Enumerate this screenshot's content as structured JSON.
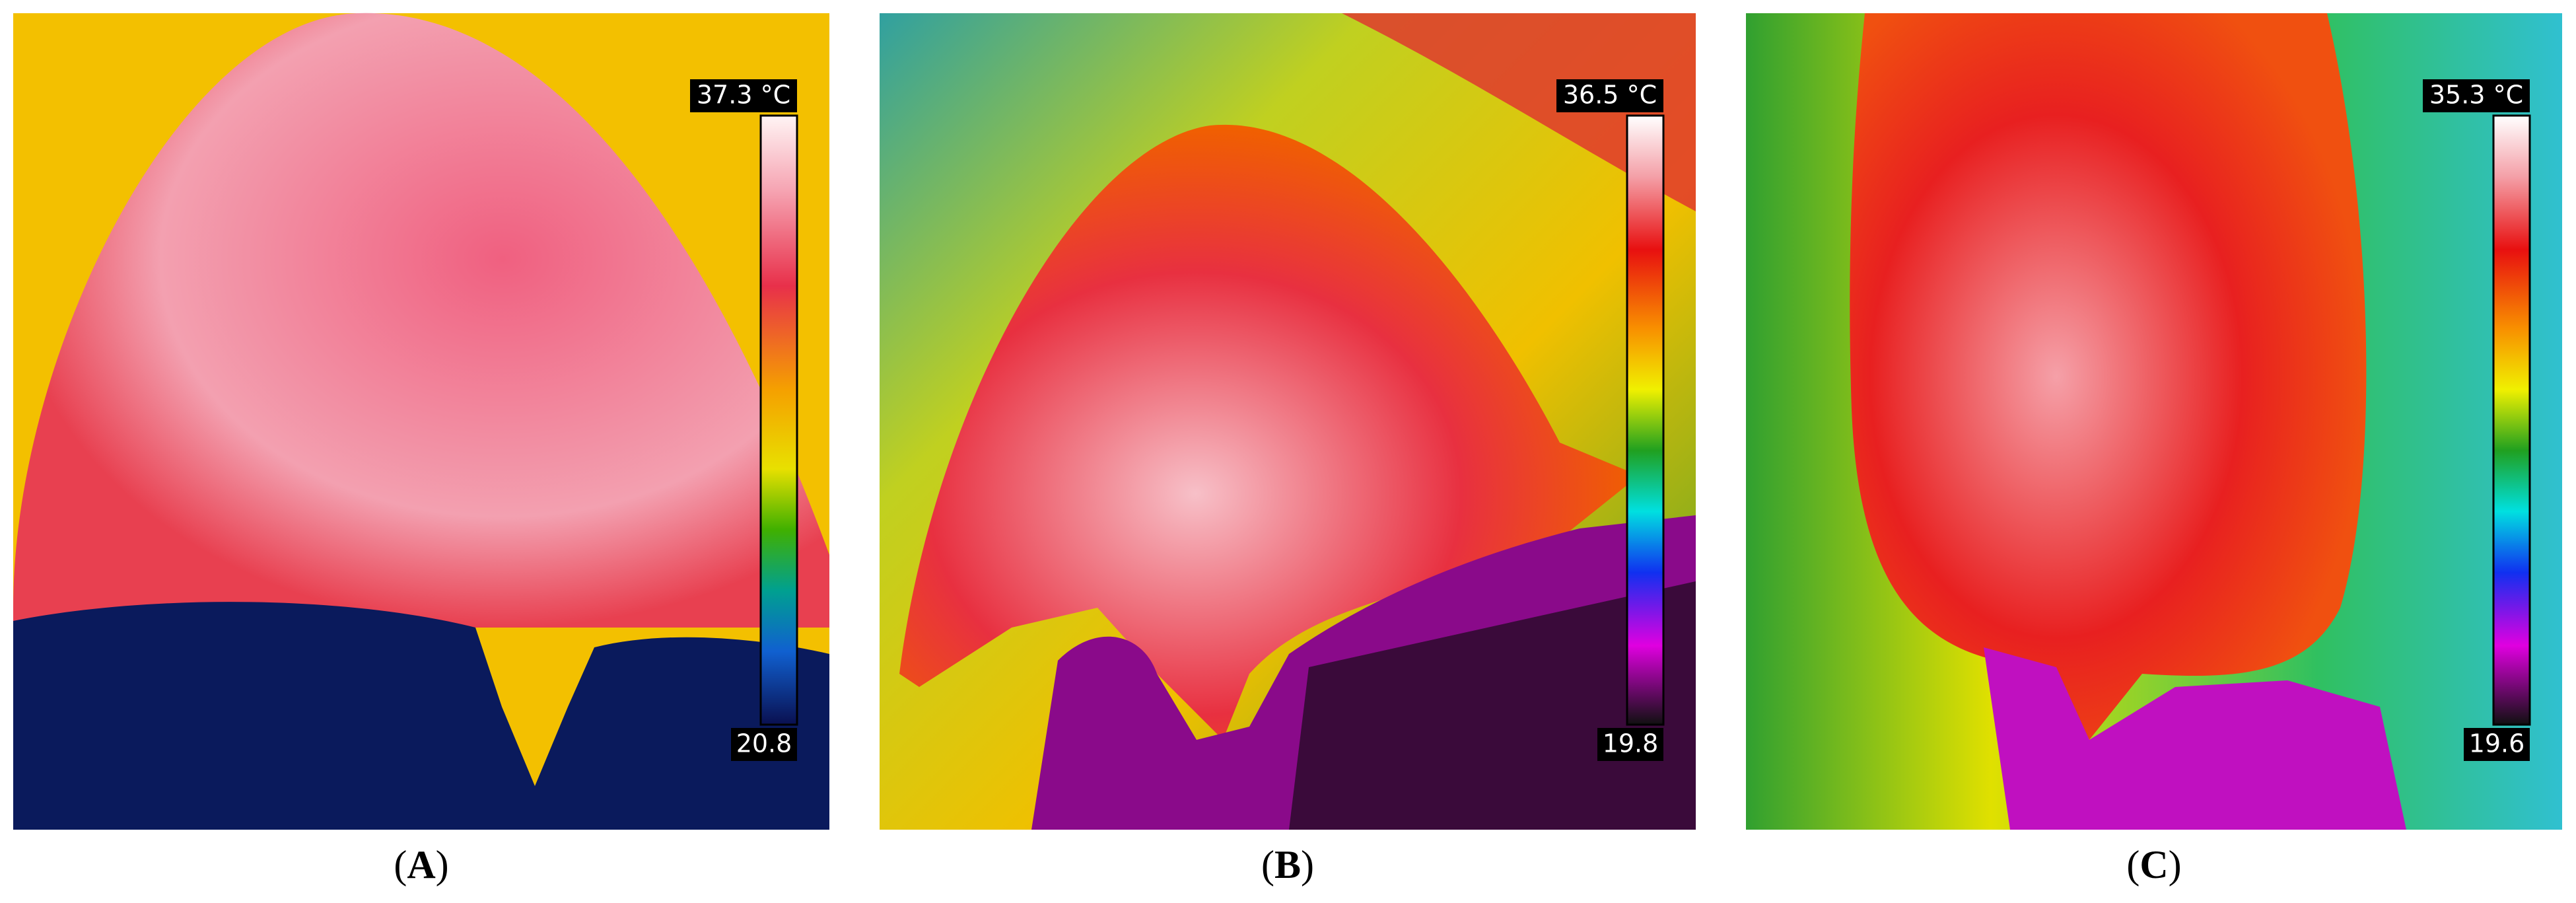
{
  "panels": [
    {
      "label": "(A)",
      "max": "37.3 °C",
      "min": "20.8"
    },
    {
      "label": "(B)",
      "max": "36.5 °C",
      "min": "19.8"
    },
    {
      "label": "(C)",
      "max": "35.3 °C",
      "min": "19.6"
    }
  ]
}
